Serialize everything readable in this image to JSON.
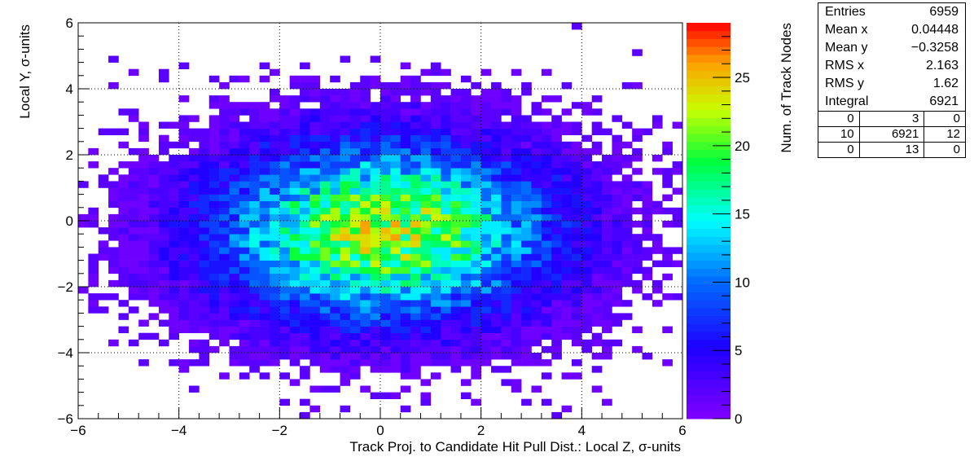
{
  "chart_data": {
    "type": "heatmap",
    "title": "",
    "xlabel": "Track Proj. to Candidate Hit Pull Dist.: Local Z, σ-units",
    "ylabel": "Local Y, σ-units",
    "zlabel": "Num. of Track Nodes",
    "xlim": [
      -6,
      6
    ],
    "ylim": [
      -6,
      6
    ],
    "zlim": [
      0,
      29
    ],
    "bins": {
      "nx": 60,
      "ny": 60
    },
    "x_ticks": [
      "−6",
      "−4",
      "−2",
      "0",
      "2",
      "4",
      "6"
    ],
    "y_ticks": [
      "−6",
      "−4",
      "−2",
      "0",
      "2",
      "4",
      "6"
    ],
    "z_ticks": [
      "0",
      "5",
      "10",
      "15",
      "20",
      "25"
    ],
    "grid": true,
    "distribution": {
      "mean_x": 0.04448,
      "mean_y": -0.3258,
      "rms_x": 2.163,
      "rms_y": 1.62,
      "peak_count": 29
    },
    "stats_box": {
      "rows": [
        {
          "label": "Entries",
          "value": "6959"
        },
        {
          "label": "Mean x",
          "value": "0.04448"
        },
        {
          "label": "Mean y",
          "value": "−0.3258"
        },
        {
          "label": "RMS x",
          "value": "2.163"
        },
        {
          "label": "RMS y",
          "value": "1.62"
        },
        {
          "label": "Integral",
          "value": "6921"
        }
      ],
      "grid": [
        [
          "0",
          "3",
          "0"
        ],
        [
          "10",
          "6921",
          "12"
        ],
        [
          "0",
          "13",
          "0"
        ]
      ]
    }
  }
}
